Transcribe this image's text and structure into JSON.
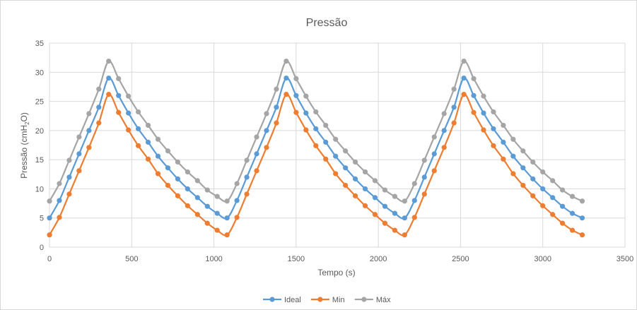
{
  "chart_data": {
    "type": "line",
    "title": "Pressão",
    "xlabel": "Tempo (s)",
    "ylabel": "Pressão (cmH2O)",
    "ylabel_main": "Pressão (cmH",
    "ylabel_sub": "2",
    "ylabel_tail": "O)",
    "xlim": [
      0,
      3500
    ],
    "ylim": [
      0,
      35
    ],
    "xticks": [
      0,
      500,
      1000,
      1500,
      2000,
      2500,
      3000,
      3500
    ],
    "yticks": [
      0,
      5,
      10,
      15,
      20,
      25,
      30,
      35
    ],
    "x_tick_labels": [
      "0",
      "500",
      "1000",
      "1500",
      "2000",
      "2500",
      "3000",
      "3500"
    ],
    "y_tick_labels": [
      "0",
      "5",
      "10",
      "15",
      "20",
      "25",
      "30",
      "35"
    ],
    "grid": true,
    "legend_position": "bottom",
    "x": [
      0,
      60,
      120,
      180,
      240,
      300,
      360,
      420,
      480,
      540,
      600,
      660,
      720,
      780,
      840,
      900,
      960,
      1020,
      1080,
      1140,
      1200,
      1260,
      1320,
      1380,
      1440,
      1500,
      1560,
      1620,
      1680,
      1740,
      1800,
      1860,
      1920,
      1980,
      2040,
      2100,
      2160,
      2220,
      2280,
      2340,
      2400,
      2460,
      2520,
      2580,
      2640,
      2700,
      2760,
      2820,
      2880,
      2940,
      3000,
      3060,
      3120,
      3180,
      3240
    ],
    "series": [
      {
        "name": "Ideal",
        "color": "#5B9BD5",
        "values": [
          5,
          8,
          12,
          16,
          20,
          24,
          29,
          26,
          23,
          20.3,
          18,
          15.6,
          13.6,
          11.7,
          10,
          8.5,
          7,
          5.8,
          5,
          8,
          12,
          16,
          20,
          24,
          29,
          26,
          23,
          20.3,
          18,
          15.6,
          13.6,
          11.7,
          10,
          8.5,
          7,
          5.8,
          5,
          8,
          12,
          16,
          20,
          24,
          29,
          26,
          23,
          20.3,
          18,
          15.6,
          13.6,
          11.7,
          10,
          8.5,
          7,
          5.8,
          5
        ]
      },
      {
        "name": "Min",
        "color": "#ED7D31",
        "values": [
          2.1,
          5.1,
          9.1,
          13.1,
          17.1,
          21.3,
          26.2,
          23.1,
          20.1,
          17.4,
          15.1,
          12.6,
          10.6,
          8.8,
          7.1,
          5.6,
          4.1,
          2.9,
          2.1,
          5.1,
          9.1,
          13.1,
          17.1,
          21.3,
          26.2,
          23.1,
          20.1,
          17.4,
          15.1,
          12.6,
          10.6,
          8.8,
          7.1,
          5.6,
          4.1,
          2.9,
          2.1,
          5.1,
          9.1,
          13.1,
          17.1,
          21.3,
          26.2,
          23.1,
          20.1,
          17.4,
          15.1,
          12.6,
          10.6,
          8.8,
          7.1,
          5.6,
          4.1,
          2.9,
          2.1
        ]
      },
      {
        "name": "Máx",
        "color": "#A5A5A5",
        "values": [
          7.9,
          10.9,
          14.9,
          18.9,
          22.9,
          27.1,
          31.9,
          28.9,
          25.9,
          23.2,
          20.9,
          18.5,
          16.5,
          14.6,
          12.9,
          11.4,
          9.8,
          8.7,
          7.9,
          10.9,
          14.9,
          18.9,
          22.9,
          27.1,
          31.9,
          28.9,
          25.9,
          23.2,
          20.9,
          18.5,
          16.5,
          14.6,
          12.9,
          11.4,
          9.8,
          8.7,
          7.9,
          10.9,
          14.9,
          18.9,
          22.9,
          27.1,
          31.9,
          28.9,
          25.9,
          23.2,
          20.9,
          18.5,
          16.5,
          14.6,
          12.9,
          11.4,
          9.8,
          8.7,
          7.9
        ]
      }
    ]
  }
}
